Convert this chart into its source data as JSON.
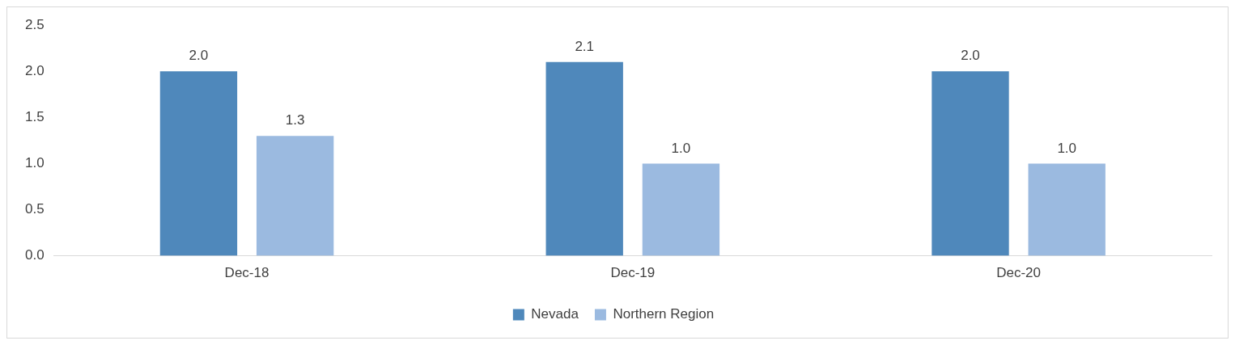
{
  "chart_data": {
    "type": "bar",
    "categories": [
      "Dec-18",
      "Dec-19",
      "Dec-20"
    ],
    "series": [
      {
        "name": "Nevada",
        "color": "#4f88bb",
        "values": [
          2.0,
          2.1,
          2.0
        ],
        "value_labels": [
          "2.0",
          "2.1",
          "2.0"
        ]
      },
      {
        "name": "Northern Region",
        "color": "#9bbae0",
        "values": [
          1.3,
          1.0,
          1.0
        ],
        "value_labels": [
          "1.3",
          "1.0",
          "1.0"
        ]
      }
    ],
    "ylim": [
      0,
      2.5
    ],
    "yticks": [
      {
        "value": 0,
        "label": "0.0"
      },
      {
        "value": 0.5,
        "label": "0.5"
      },
      {
        "value": 1,
        "label": "1.0"
      },
      {
        "value": 1.5,
        "label": "1.5"
      },
      {
        "value": 2,
        "label": "2.0"
      },
      {
        "value": 2.5,
        "label": "2.5"
      }
    ],
    "grid": false,
    "legend": "bottom"
  }
}
